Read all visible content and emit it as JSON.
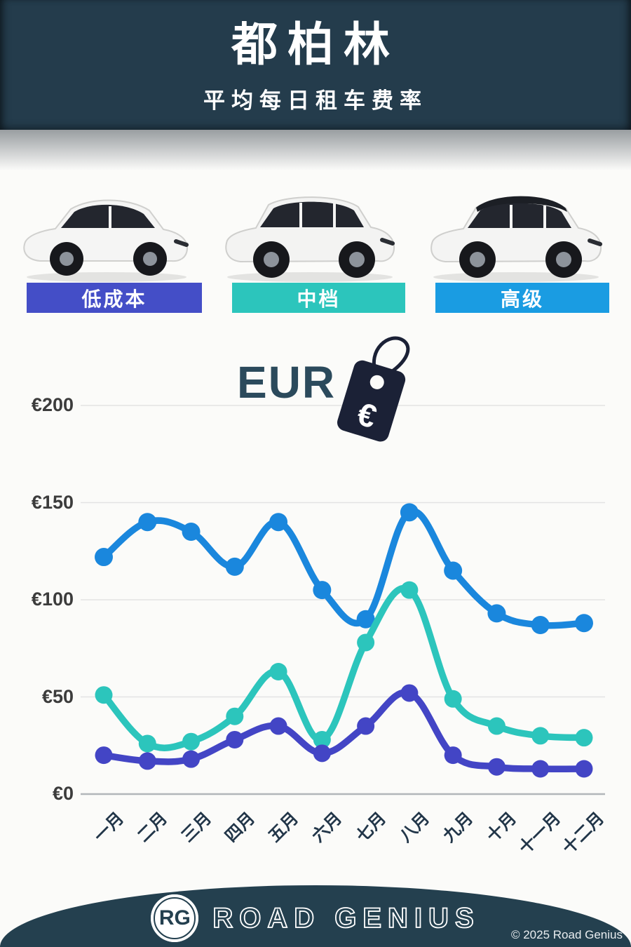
{
  "header": {
    "title": "都柏林",
    "subtitle": "平均每日租车费率"
  },
  "tiers": [
    {
      "id": "economy",
      "label": "低成本",
      "color": "#444ec7"
    },
    {
      "id": "mid",
      "label": "中档",
      "color": "#2cc5bc"
    },
    {
      "id": "premium",
      "label": "高级",
      "color": "#1a9ce2"
    }
  ],
  "currency": {
    "label": "EUR",
    "symbol": "€"
  },
  "chart_data": {
    "type": "line",
    "title": "",
    "categories": [
      "一月",
      "二月",
      "三月",
      "四月",
      "五月",
      "六月",
      "七月",
      "八月",
      "九月",
      "十月",
      "十一月",
      "十二月"
    ],
    "series": [
      {
        "name": "高级",
        "color": "#1a87dd",
        "values": [
          122,
          140,
          135,
          117,
          140,
          105,
          90,
          145,
          115,
          93,
          87,
          88
        ]
      },
      {
        "name": "中档",
        "color": "#2cc5bc",
        "values": [
          51,
          26,
          27,
          40,
          63,
          28,
          78,
          105,
          49,
          35,
          30,
          29
        ]
      },
      {
        "name": "低成本",
        "color": "#4345c5",
        "values": [
          20,
          17,
          18,
          28,
          35,
          21,
          35,
          52,
          20,
          14,
          13,
          13
        ]
      }
    ],
    "y_ticks": [
      "€200",
      "€150",
      "€100",
      "€50",
      "€0"
    ],
    "y_tick_values": [
      200,
      150,
      100,
      50,
      0
    ],
    "ylim": [
      0,
      200
    ],
    "grid": true,
    "legend": "none"
  },
  "footer": {
    "logo_initials": "RG",
    "brand": "ROAD GENIUS",
    "copyright": "© 2025 Road Genius"
  },
  "colors": {
    "header_bg": "#243c4c",
    "footer_bg": "#24404f",
    "grid": "#e3e3e3",
    "axis_line": "#b2b6ba",
    "tag": "#1b2136"
  }
}
